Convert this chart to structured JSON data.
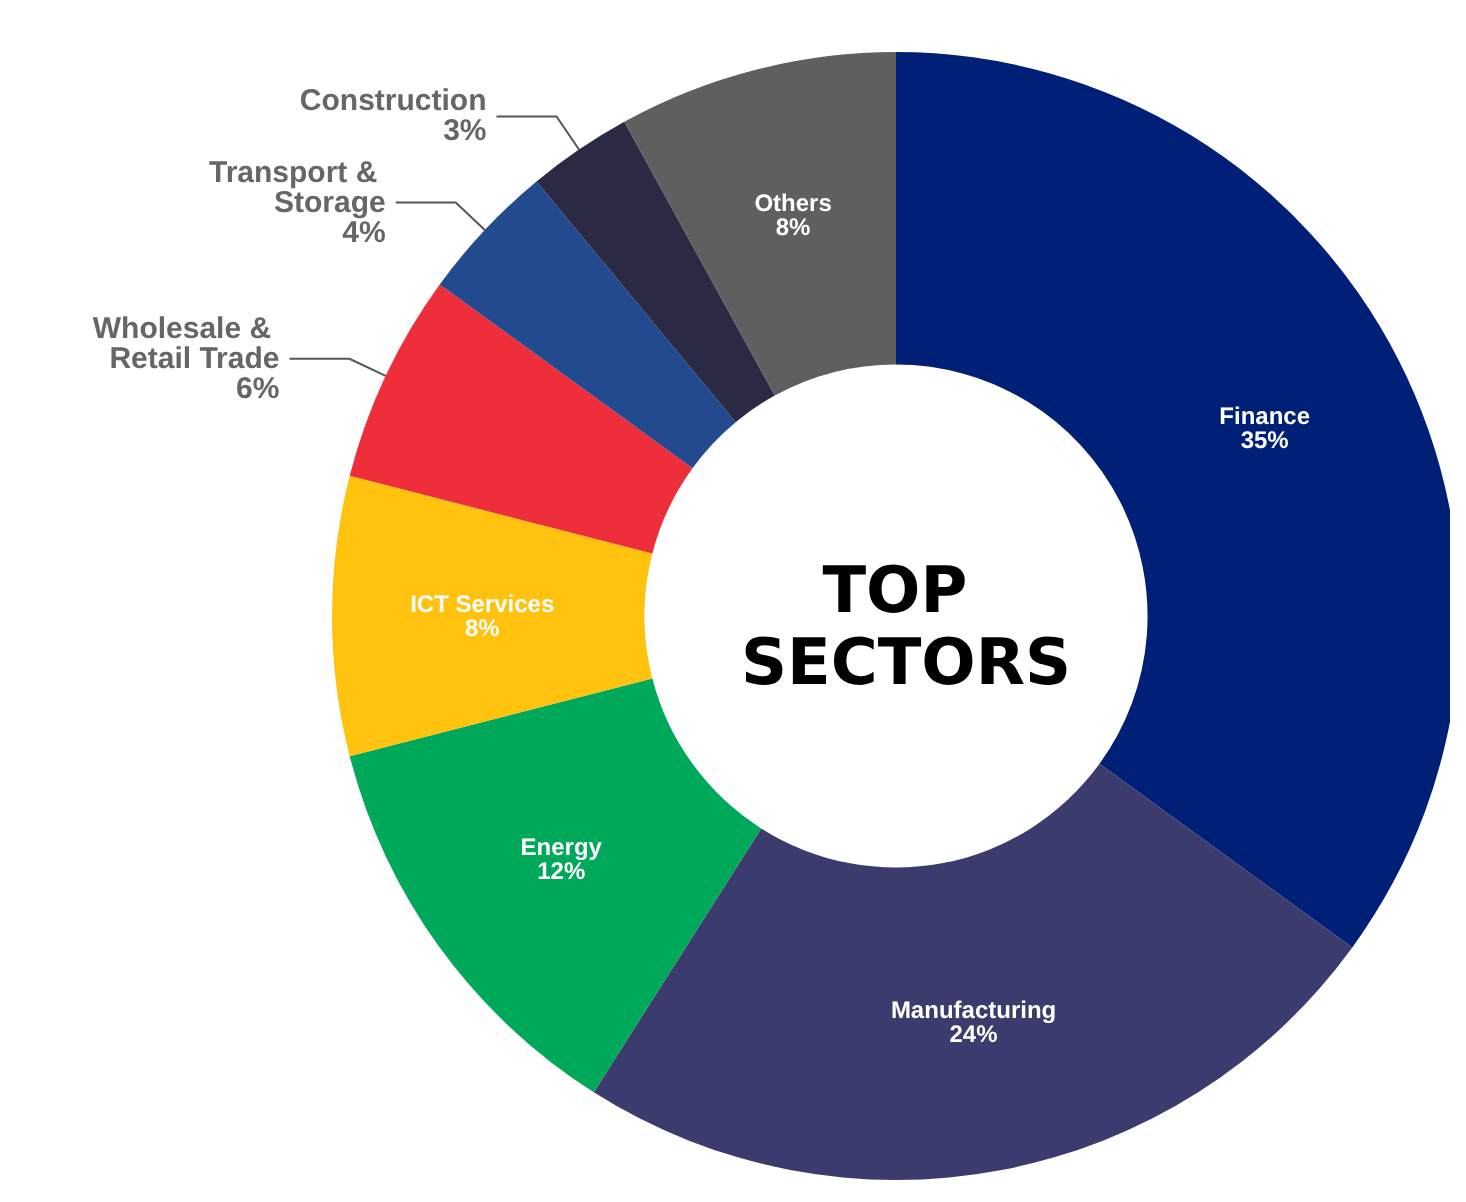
{
  "chart_data": {
    "type": "donut",
    "title": "TOP SECTORS",
    "categories": [
      "Finance",
      "Manufacturing",
      "Energy",
      "ICT Services",
      "Wholesale & Retail Trade",
      "Transport & Storage",
      "Construction",
      "Others"
    ],
    "values": [
      35,
      24,
      12,
      8,
      6,
      4,
      3,
      8
    ],
    "value_labels": [
      "35%",
      "24%",
      "12%",
      "8%",
      "6%",
      "4%",
      "3%",
      "8%"
    ],
    "colors": [
      "#002077",
      "#3b3b6d",
      "#00a859",
      "#ffc20e",
      "#ee2e3b",
      "#234a8f",
      "#2a2a44",
      "#5f5f5f"
    ],
    "data_labels": true,
    "legend": false
  }
}
